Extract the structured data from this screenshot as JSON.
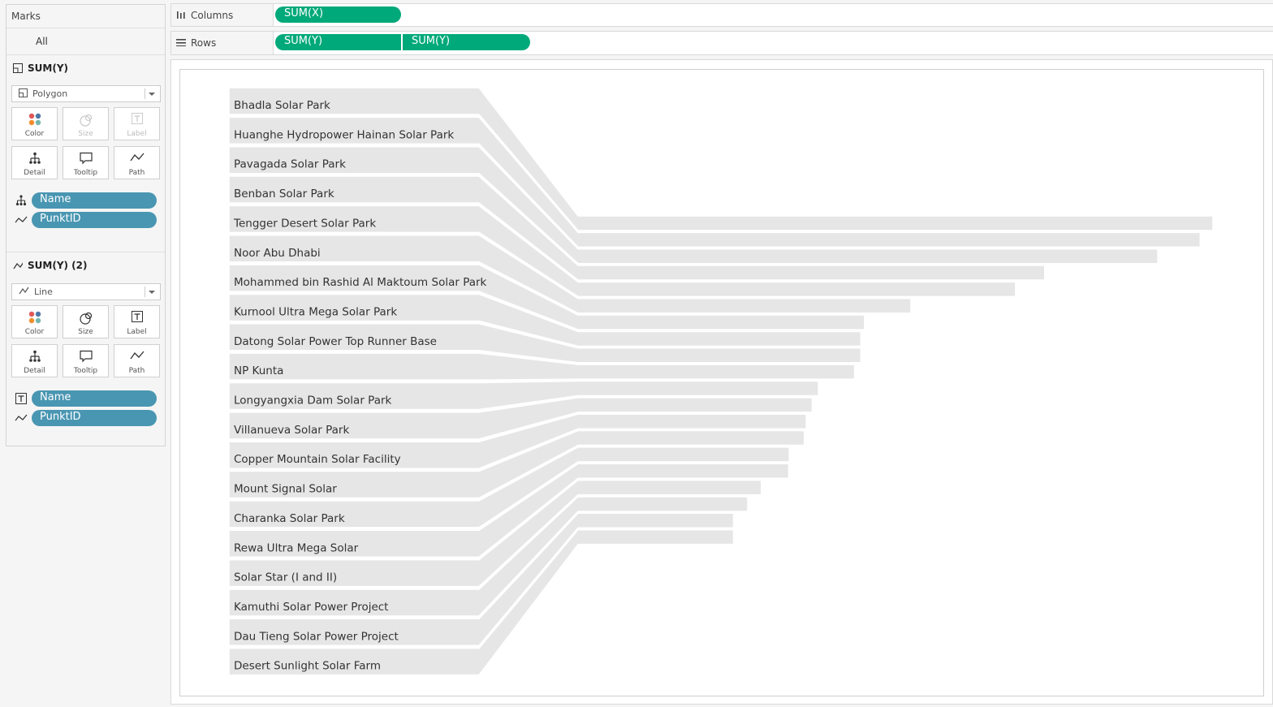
{
  "marks": {
    "header": "Marks",
    "all_label": "All",
    "sections": [
      {
        "title": "SUM(Y)",
        "title_icon": "polygon-icon",
        "mark_type": "Polygon",
        "cards": [
          {
            "label": "Color",
            "icon": "color-dots-icon",
            "enabled": true
          },
          {
            "label": "Size",
            "icon": "size-icon",
            "enabled": false
          },
          {
            "label": "Label",
            "icon": "label-icon",
            "enabled": false
          },
          {
            "label": "Detail",
            "icon": "detail-icon",
            "enabled": true
          },
          {
            "label": "Tooltip",
            "icon": "tooltip-icon",
            "enabled": true
          },
          {
            "label": "Path",
            "icon": "path-icon",
            "enabled": true
          }
        ],
        "pills": [
          {
            "label": "Name",
            "icon": "detail-icon"
          },
          {
            "label": "PunktID",
            "icon": "path-icon"
          }
        ]
      },
      {
        "title": "SUM(Y) (2)",
        "title_icon": "line-icon",
        "mark_type": "Line",
        "cards": [
          {
            "label": "Color",
            "icon": "color-dots-icon",
            "enabled": true
          },
          {
            "label": "Size",
            "icon": "size-icon",
            "enabled": true
          },
          {
            "label": "Label",
            "icon": "label-icon",
            "enabled": true
          },
          {
            "label": "Detail",
            "icon": "detail-icon",
            "enabled": true
          },
          {
            "label": "Tooltip",
            "icon": "tooltip-icon",
            "enabled": true
          },
          {
            "label": "Path",
            "icon": "path-icon",
            "enabled": true
          }
        ],
        "pills": [
          {
            "label": "Name",
            "icon": "label-icon"
          },
          {
            "label": "PunktID",
            "icon": "path-icon"
          }
        ]
      }
    ]
  },
  "shelves": {
    "columns": {
      "label": "Columns",
      "icon": "columns-icon",
      "pills": [
        "SUM(X)"
      ]
    },
    "rows": {
      "label": "Rows",
      "icon": "rows-icon",
      "pills": [
        "SUM(Y)",
        "SUM(Y)"
      ]
    }
  },
  "colors": {
    "pill_blue": "#4996b2",
    "pill_green": "#00a97a",
    "shape_fill": "#e6e6e6"
  },
  "chart_data": {
    "type": "bar",
    "categories": [
      "Bhadla Solar Park",
      "Huanghe Hydropower Hainan Solar Park",
      "Pavagada Solar Park",
      "Benban Solar Park",
      "Tengger Desert Solar Park",
      "Noor Abu Dhabi",
      "Mohammed bin Rashid Al Maktoum Solar Park",
      "Kurnool Ultra Mega Solar Park",
      "Datong Solar Power Top Runner Base",
      "NP Kunta",
      "Longyangxia Dam Solar Park",
      "Villanueva Solar Park",
      "Copper Mountain Solar Facility",
      "Mount Signal Solar",
      "Charanka Solar Park",
      "Rewa Ultra Mega Solar",
      "Solar Star (I and II)",
      "Kamuthi Solar Power Project",
      "Dau Tieng Solar Power Project",
      "Desert Sunlight Solar Farm"
    ],
    "values": [
      2245,
      2200,
      2050,
      1650,
      1547,
      1177,
      1013,
      1000,
      1000,
      978,
      850,
      828,
      807,
      800,
      747,
      745,
      648,
      600,
      550,
      550
    ],
    "title": "",
    "xlabel": "",
    "ylabel": "",
    "grid": false,
    "legend": "none"
  }
}
